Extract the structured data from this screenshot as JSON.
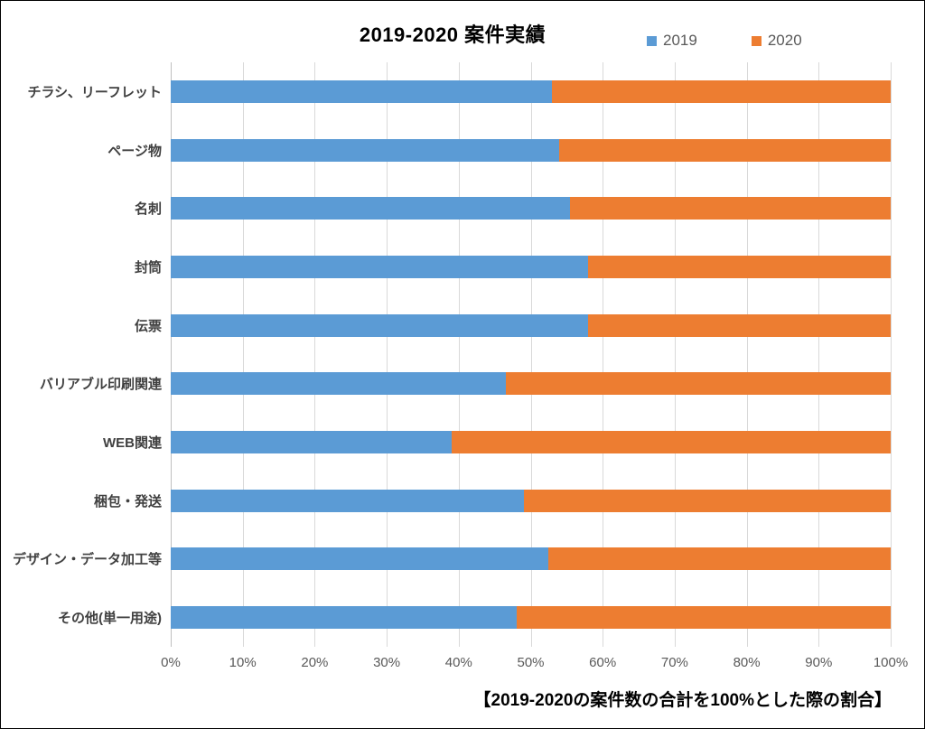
{
  "chart": {
    "title": "2019-2020 案件実績",
    "caption": "【2019-2020の案件数の合計を100%とした際の割合】"
  },
  "chart_data": {
    "type": "bar",
    "orientation": "horizontal",
    "stacked": true,
    "percent_stacked": true,
    "title": "2019-2020 案件実績",
    "annotation": "【2019-2020の案件数の合計を100%とした際の割合】",
    "categories": [
      "チラシ、リーフレット",
      "ページ物",
      "名刺",
      "封筒",
      "伝票",
      "バリアブル印刷関連",
      "WEB関連",
      "梱包・発送",
      "デザイン・データ加工等",
      "その他(単一用途)"
    ],
    "series": [
      {
        "name": "2019",
        "color": "#5B9BD5",
        "values": [
          53,
          54,
          55.5,
          58,
          58,
          46.5,
          39,
          49,
          52.5,
          48
        ]
      },
      {
        "name": "2020",
        "color": "#ED7D31",
        "values": [
          47,
          46,
          44.5,
          42,
          42,
          53.5,
          61,
          51,
          47.5,
          52
        ]
      }
    ],
    "x_ticks": [
      "0%",
      "10%",
      "20%",
      "30%",
      "40%",
      "50%",
      "60%",
      "70%",
      "80%",
      "90%",
      "100%"
    ],
    "xlim": [
      0,
      100
    ],
    "xlabel": "",
    "ylabel": "",
    "grid": true,
    "gridline_color": "#D9D9D9",
    "legend_position": "top-right",
    "legend_text_color": "#595959"
  }
}
